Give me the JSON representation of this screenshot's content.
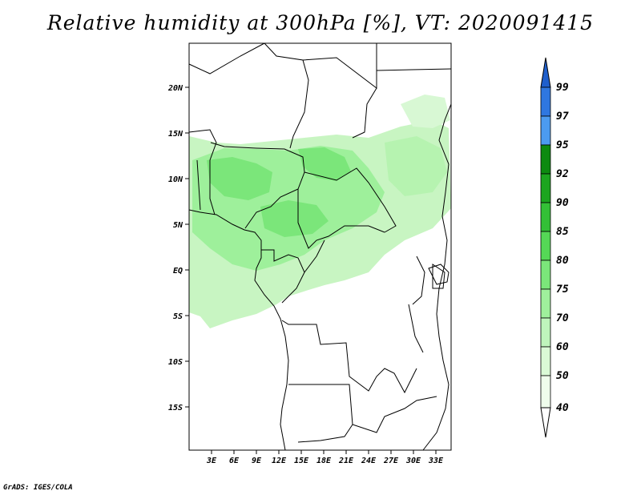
{
  "title": "Relative humidity at 300hPa [%], VT: 2020091415",
  "credit": "GrADS: IGES/COLA",
  "map": {
    "projection": "latlon",
    "lon_range": [
      0,
      35
    ],
    "lat_range": [
      -20,
      25
    ],
    "lon_ticks": [
      "3E",
      "6E",
      "9E",
      "12E",
      "15E",
      "18E",
      "21E",
      "24E",
      "27E",
      "30E",
      "33E"
    ],
    "lat_ticks": [
      "20N",
      "15N",
      "10N",
      "5N",
      "EQ",
      "5S",
      "10S",
      "15S"
    ],
    "field": "relative humidity 300hPa",
    "units": "%"
  },
  "colorbar": {
    "levels": [
      "99",
      "97",
      "95",
      "92",
      "90",
      "85",
      "80",
      "75",
      "70",
      "60",
      "50",
      "40"
    ],
    "colors": {
      "99": "#1f5fcc",
      "97": "#2f77e0",
      "95": "#4c9bf0",
      "92": "#0d8a10",
      "90": "#1ca51f",
      "85": "#33c036",
      "80": "#55d856",
      "75": "#7be67a",
      "70": "#9ff09c",
      "60": "#bff5bc",
      "50": "#dafad6",
      "40": "#effdec"
    }
  }
}
